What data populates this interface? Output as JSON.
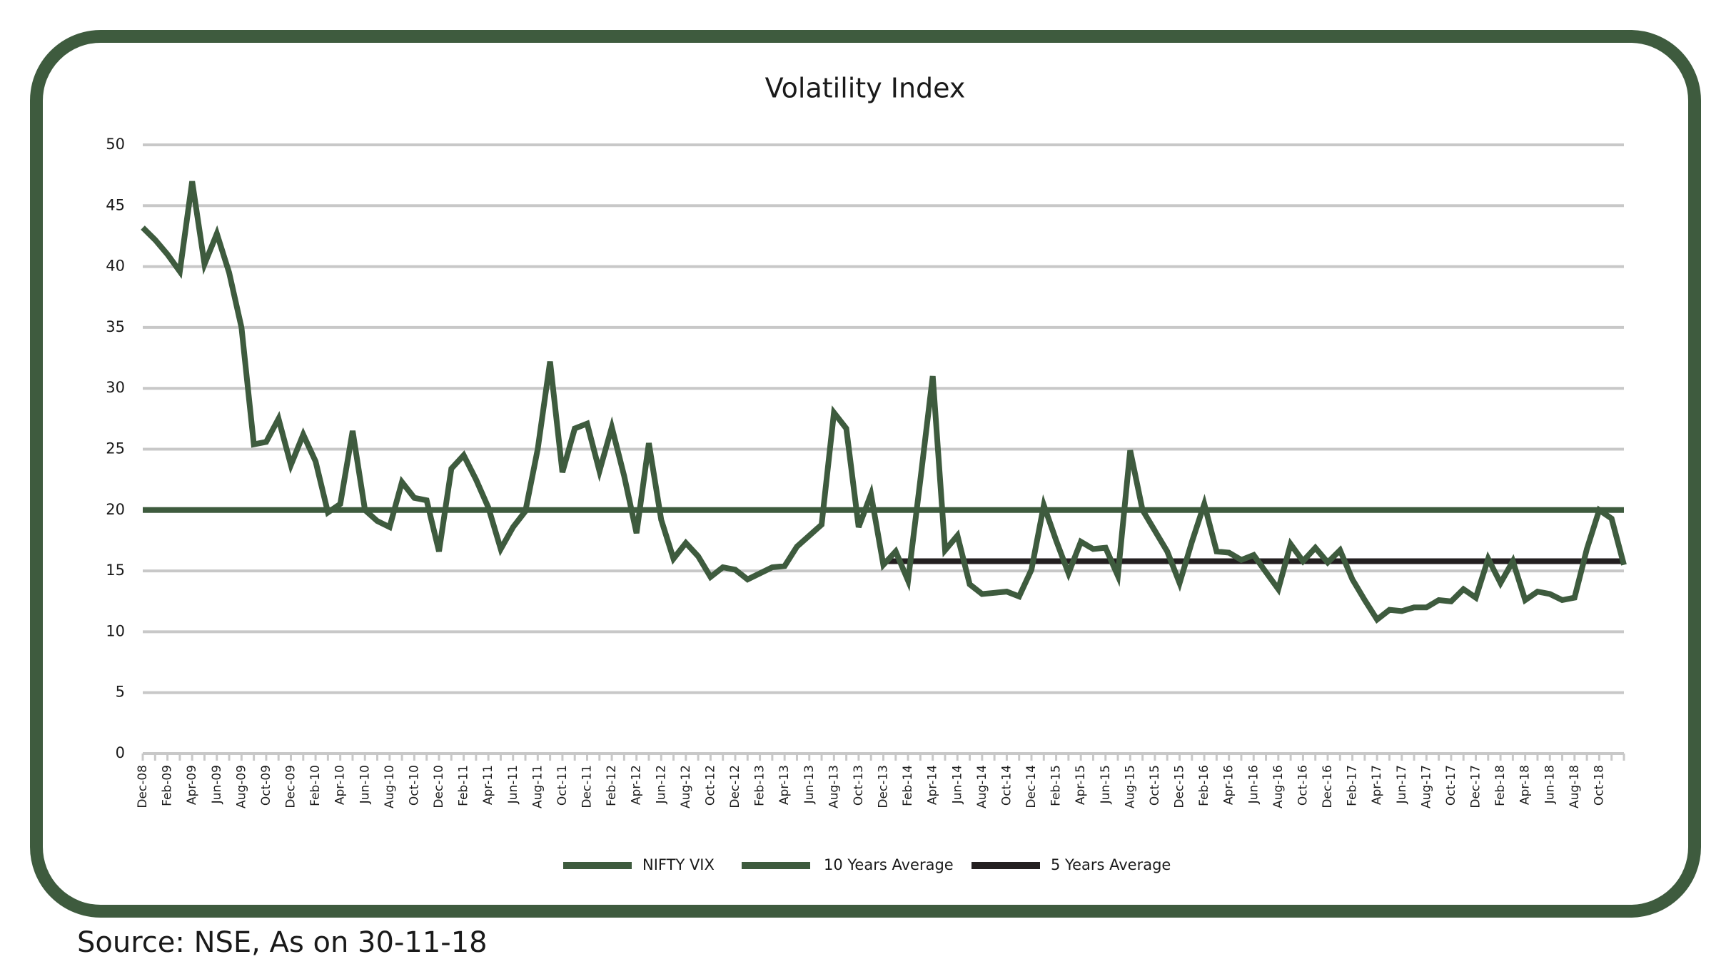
{
  "chart_data": {
    "type": "line",
    "title": "Volatility Index",
    "source": "Source: NSE, As on 30-11-18",
    "categories": [
      "Dec-08",
      null,
      "Feb-09",
      null,
      "Apr-09",
      null,
      "Jun-09",
      null,
      "Aug-09",
      null,
      "Oct-09",
      null,
      "Dec-09",
      null,
      "Feb-10",
      null,
      "Apr-10",
      null,
      "Jun-10",
      null,
      "Aug-10",
      null,
      "Oct-10",
      null,
      "Dec-10",
      null,
      "Feb-11",
      null,
      "Apr-11",
      null,
      "Jun-11",
      null,
      "Aug-11",
      null,
      "Oct-11",
      null,
      "Dec-11",
      null,
      "Feb-12",
      null,
      "Apr-12",
      null,
      "Jun-12",
      null,
      "Aug-12",
      null,
      "Oct-12",
      null,
      "Dec-12",
      null,
      "Feb-13",
      null,
      "Apr-13",
      null,
      "Jun-13",
      null,
      "Aug-13",
      null,
      "Oct-13",
      null,
      "Dec-13",
      null,
      "Feb-14",
      null,
      "Apr-14",
      null,
      "Jun-14",
      null,
      "Aug-14",
      null,
      "Oct-14",
      null,
      "Dec-14",
      null,
      "Feb-15",
      null,
      "Apr-15",
      null,
      "Jun-15",
      null,
      "Aug-15",
      null,
      "Oct-15",
      null,
      "Dec-15",
      null,
      "Feb-16",
      null,
      "Apr-16",
      null,
      "Jun-16",
      null,
      "Aug-16",
      null,
      "Oct-16",
      null,
      "Dec-16",
      null,
      "Feb-17",
      null,
      "Apr-17",
      null,
      "Jun-17",
      null,
      "Aug-17",
      null,
      "Oct-17",
      null,
      "Dec-17",
      null,
      "Feb-18",
      null,
      "Apr-18",
      null,
      "Jun-18",
      null,
      "Aug-18",
      null,
      "Oct-18",
      null,
      null
    ],
    "series": [
      {
        "name": "10 Years Average",
        "color": "#3e5b3e",
        "values": [
          20,
          20,
          20,
          20,
          20,
          20,
          20,
          20,
          20,
          20,
          20,
          20,
          20,
          20,
          20,
          20,
          20,
          20,
          20,
          20,
          20,
          20,
          20,
          20,
          20,
          20,
          20,
          20,
          20,
          20,
          20,
          20,
          20,
          20,
          20,
          20,
          20,
          20,
          20,
          20,
          20,
          20,
          20,
          20,
          20,
          20,
          20,
          20,
          20,
          20,
          20,
          20,
          20,
          20,
          20,
          20,
          20,
          20,
          20,
          20,
          20,
          20,
          20,
          20,
          20,
          20,
          20,
          20,
          20,
          20,
          20,
          20,
          20,
          20,
          20,
          20,
          20,
          20,
          20,
          20,
          20,
          20,
          20,
          20,
          20,
          20,
          20,
          20,
          20,
          20,
          20,
          20,
          20,
          20,
          20,
          20,
          20,
          20,
          20,
          20,
          20,
          20,
          20,
          20,
          20,
          20,
          20,
          20,
          20,
          20,
          20,
          20,
          20,
          20,
          20,
          20,
          20,
          20,
          20,
          20,
          20
        ]
      },
      {
        "name": "5 Years Average",
        "color": "#231f20",
        "values": [
          null,
          null,
          null,
          null,
          null,
          null,
          null,
          null,
          null,
          null,
          null,
          null,
          null,
          null,
          null,
          null,
          null,
          null,
          null,
          null,
          null,
          null,
          null,
          null,
          null,
          null,
          null,
          null,
          null,
          null,
          null,
          null,
          null,
          null,
          null,
          null,
          null,
          null,
          null,
          null,
          null,
          null,
          null,
          null,
          null,
          null,
          null,
          null,
          null,
          null,
          null,
          null,
          null,
          null,
          null,
          null,
          null,
          null,
          null,
          null,
          15.8,
          15.8,
          15.8,
          15.8,
          15.8,
          15.8,
          15.8,
          15.8,
          15.8,
          15.8,
          15.8,
          15.8,
          15.8,
          15.8,
          15.8,
          15.8,
          15.8,
          15.8,
          15.8,
          15.8,
          15.8,
          15.8,
          15.8,
          15.8,
          15.8,
          15.8,
          15.8,
          15.8,
          15.8,
          15.8,
          15.8,
          15.8,
          15.8,
          15.8,
          15.8,
          15.8,
          15.8,
          15.8,
          15.8,
          15.8,
          15.8,
          15.8,
          15.8,
          15.8,
          15.8,
          15.8,
          15.8,
          15.8,
          15.8,
          15.8,
          15.8,
          15.8,
          15.8,
          15.8,
          15.8,
          15.8,
          15.8,
          15.8,
          15.8,
          15.8,
          15.8
        ]
      },
      {
        "name": "NIFTY VIX",
        "color": "#3e5b3e",
        "values": [
          43.2,
          42.2,
          41,
          39.6,
          47,
          40.2,
          42.7,
          39.5,
          35,
          25.4,
          25.6,
          27.5,
          23.7,
          26.2,
          24,
          19.8,
          20.5,
          26.5,
          20,
          19.1,
          18.6,
          22.3,
          21,
          20.8,
          16.6,
          23.4,
          24.5,
          22.5,
          20.2,
          16.8,
          18.6,
          19.9,
          25,
          32.2,
          23.1,
          26.7,
          27.1,
          23.2,
          26.8,
          22.8,
          18.1,
          25.5,
          19.2,
          16,
          17.3,
          16.2,
          14.5,
          15.3,
          15.1,
          14.3,
          14.8,
          15.3,
          15.4,
          17,
          17.9,
          18.8,
          28,
          26.7,
          18.6,
          21.3,
          15.5,
          16.6,
          14.2,
          22.5,
          31,
          16.7,
          17.9,
          13.9,
          13.1,
          13.2,
          13.3,
          12.9,
          15.1,
          20.4,
          17.5,
          14.8,
          17.4,
          16.8,
          16.9,
          14.6,
          24.9,
          20,
          18.3,
          16.6,
          14,
          17.4,
          20.5,
          16.6,
          16.5,
          15.9,
          16.3,
          14.9,
          13.5,
          17.2,
          15.8,
          16.9,
          15.7,
          16.7,
          14.3,
          12.6,
          11,
          11.8,
          11.7,
          12,
          12,
          12.6,
          12.5,
          13.5,
          12.8,
          16,
          14,
          15.8,
          12.6,
          13.3,
          13.1,
          12.6,
          12.8,
          16.8,
          20,
          19.3,
          15.5
        ]
      }
    ],
    "legend_order": [
      2,
      0,
      1
    ],
    "ylim": [
      0,
      50
    ],
    "yticks": [
      0,
      5,
      10,
      15,
      20,
      25,
      30,
      35,
      40,
      45,
      50
    ],
    "grid": true
  }
}
